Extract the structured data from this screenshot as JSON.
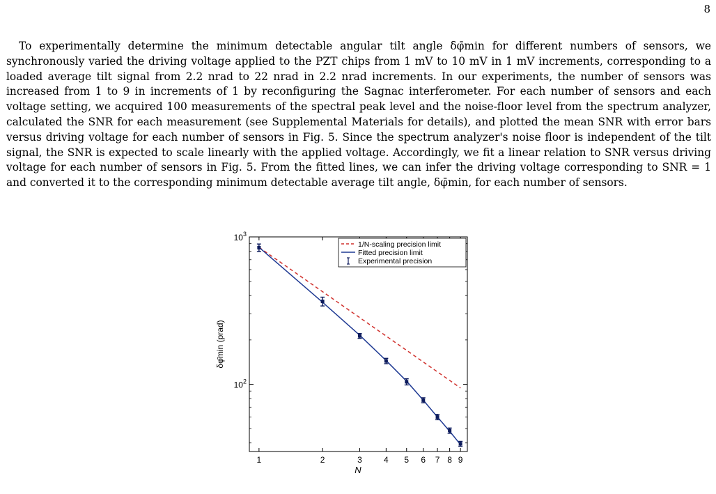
{
  "page_number": "8",
  "paragraph": "To experimentally determine the minimum detectable angular tilt angle δφ̄min for different numbers of sensors, we synchronously varied the driving voltage applied to the PZT chips from 1 mV to 10 mV in 1 mV increments, corresponding to a loaded average tilt signal from 2.2 nrad to 22 nrad in 2.2 nrad increments. In our experiments, the number of sensors was increased from 1 to 9 in increments of 1 by reconfiguring the Sagnac interferometer. For each number of sensors and each voltage setting, we acquired 100 measurements of the spectral peak level and the noise-floor level from the spectrum analyzer, calculated the SNR for each measurement (see Supplemental Materials for details), and plotted the mean SNR with error bars versus driving voltage for each number of sensors in Fig. 5. Since the spectrum analyzer's noise floor is independent of the tilt signal, the SNR is expected to scale linearly with the applied voltage. Accordingly, we fit a linear relation to SNR versus driving voltage for each number of sensors in Fig. 5. From the fitted lines, we can infer the driving voltage corresponding to SNR = 1 and converted it to the corresponding minimum detectable average tilt angle, δφ̄min, for each number of sensors.",
  "chart_data": {
    "type": "line",
    "xlabel": "N",
    "ylabel": "δφ̄min (prad)",
    "xscale": "log",
    "yscale": "log",
    "xlim": [
      0.9,
      9.7
    ],
    "ylim": [
      35,
      1000
    ],
    "x_ticks": [
      1,
      2,
      3,
      4,
      5,
      6,
      7,
      8,
      9
    ],
    "y_ticks": [
      {
        "value": 100,
        "label": "10",
        "exp": "2"
      },
      {
        "value": 1000,
        "label": "10",
        "exp": "3"
      }
    ],
    "grid": false,
    "legend_position": "top-right",
    "series": [
      {
        "name": "1/N-scaling precision limit",
        "style": "dashed",
        "color": "#d0312d",
        "x": [
          1,
          2,
          3,
          4,
          5,
          6,
          7,
          8,
          9
        ],
        "y": [
          850,
          425,
          283.3,
          212.5,
          170,
          141.7,
          121.4,
          106.3,
          94.4
        ]
      },
      {
        "name": "Fitted precision limit",
        "style": "solid",
        "color": "#1f3a93",
        "x": [
          1,
          2,
          3,
          4,
          5,
          6,
          7,
          8,
          9
        ],
        "y": [
          850,
          360,
          215,
          145,
          105,
          78,
          60,
          48,
          39
        ]
      },
      {
        "name": "Experimental precision",
        "style": "errorbar",
        "color": "#0d1b5c",
        "x": [
          1,
          2,
          3,
          4,
          5,
          6,
          7,
          8,
          9
        ],
        "y": [
          845,
          365,
          213,
          144,
          104,
          78,
          60,
          48.5,
          39.5
        ],
        "error": [
          50,
          25,
          8,
          6,
          5,
          3,
          2.5,
          2,
          1.5
        ]
      }
    ]
  }
}
